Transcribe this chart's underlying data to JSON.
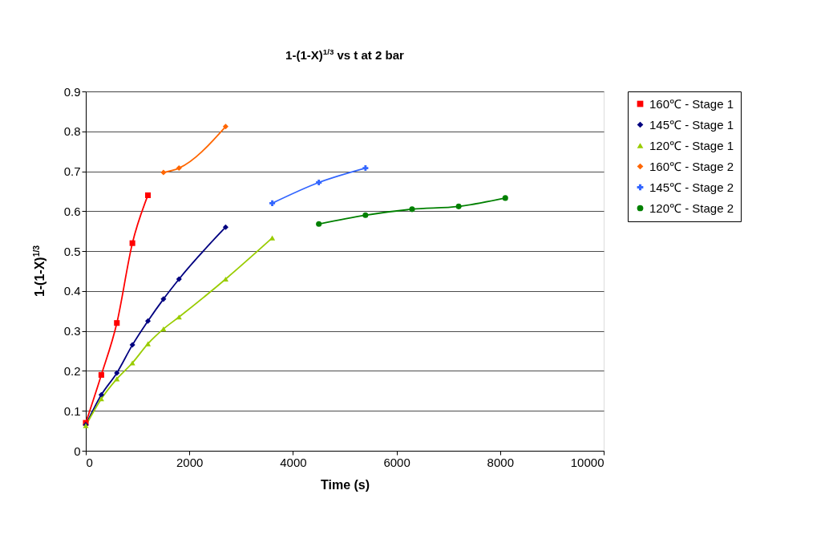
{
  "chart_data": {
    "type": "line",
    "title": "1-(1-X)$^{1/3}$ vs t at 2 bar",
    "xlabel": "Time (s)",
    "ylabel": "1-(1-X)$^{1/3}$",
    "xlim": [
      0,
      10000
    ],
    "xticks": [
      0,
      2000,
      4000,
      6000,
      8000,
      10000
    ],
    "ylim": [
      0,
      0.9
    ],
    "yticks": [
      0,
      0.1,
      0.2,
      0.3,
      0.4,
      0.5,
      0.6,
      0.7,
      0.8,
      0.9
    ],
    "grid": "y",
    "legend": "right",
    "series": [
      {
        "name": "160℃ - Stage 1",
        "color": "#ff0000",
        "marker": "square",
        "x": [
          0,
          300,
          600,
          900,
          1200
        ],
        "values": [
          0.07,
          0.19,
          0.32,
          0.52,
          0.64
        ]
      },
      {
        "name": "145℃ - Stage 1",
        "color": "#000080",
        "marker": "diamond",
        "x": [
          0,
          300,
          600,
          900,
          1200,
          1500,
          1800,
          2700
        ],
        "values": [
          0.065,
          0.14,
          0.195,
          0.265,
          0.325,
          0.38,
          0.43,
          0.56
        ]
      },
      {
        "name": "120℃ - Stage 1",
        "color": "#99cc00",
        "marker": "triangle",
        "x": [
          0,
          300,
          600,
          900,
          1200,
          1500,
          1800,
          2700,
          3600
        ],
        "values": [
          0.063,
          0.13,
          0.18,
          0.22,
          0.268,
          0.305,
          0.335,
          0.43,
          0.533
        ]
      },
      {
        "name": "160℃ - Stage 2",
        "color": "#ff6600",
        "marker": "diamond",
        "x": [
          1500,
          1800,
          2700
        ],
        "values": [
          0.697,
          0.708,
          0.812
        ]
      },
      {
        "name": "145℃ - Stage 2",
        "color": "#3366ff",
        "marker": "cross",
        "x": [
          3600,
          4500,
          5400
        ],
        "values": [
          0.62,
          0.672,
          0.708
        ]
      },
      {
        "name": "120℃ - Stage 2",
        "color": "#008000",
        "marker": "circle",
        "x": [
          4500,
          5400,
          6300,
          7200,
          8100
        ],
        "values": [
          0.568,
          0.59,
          0.605,
          0.612,
          0.633
        ]
      }
    ]
  }
}
